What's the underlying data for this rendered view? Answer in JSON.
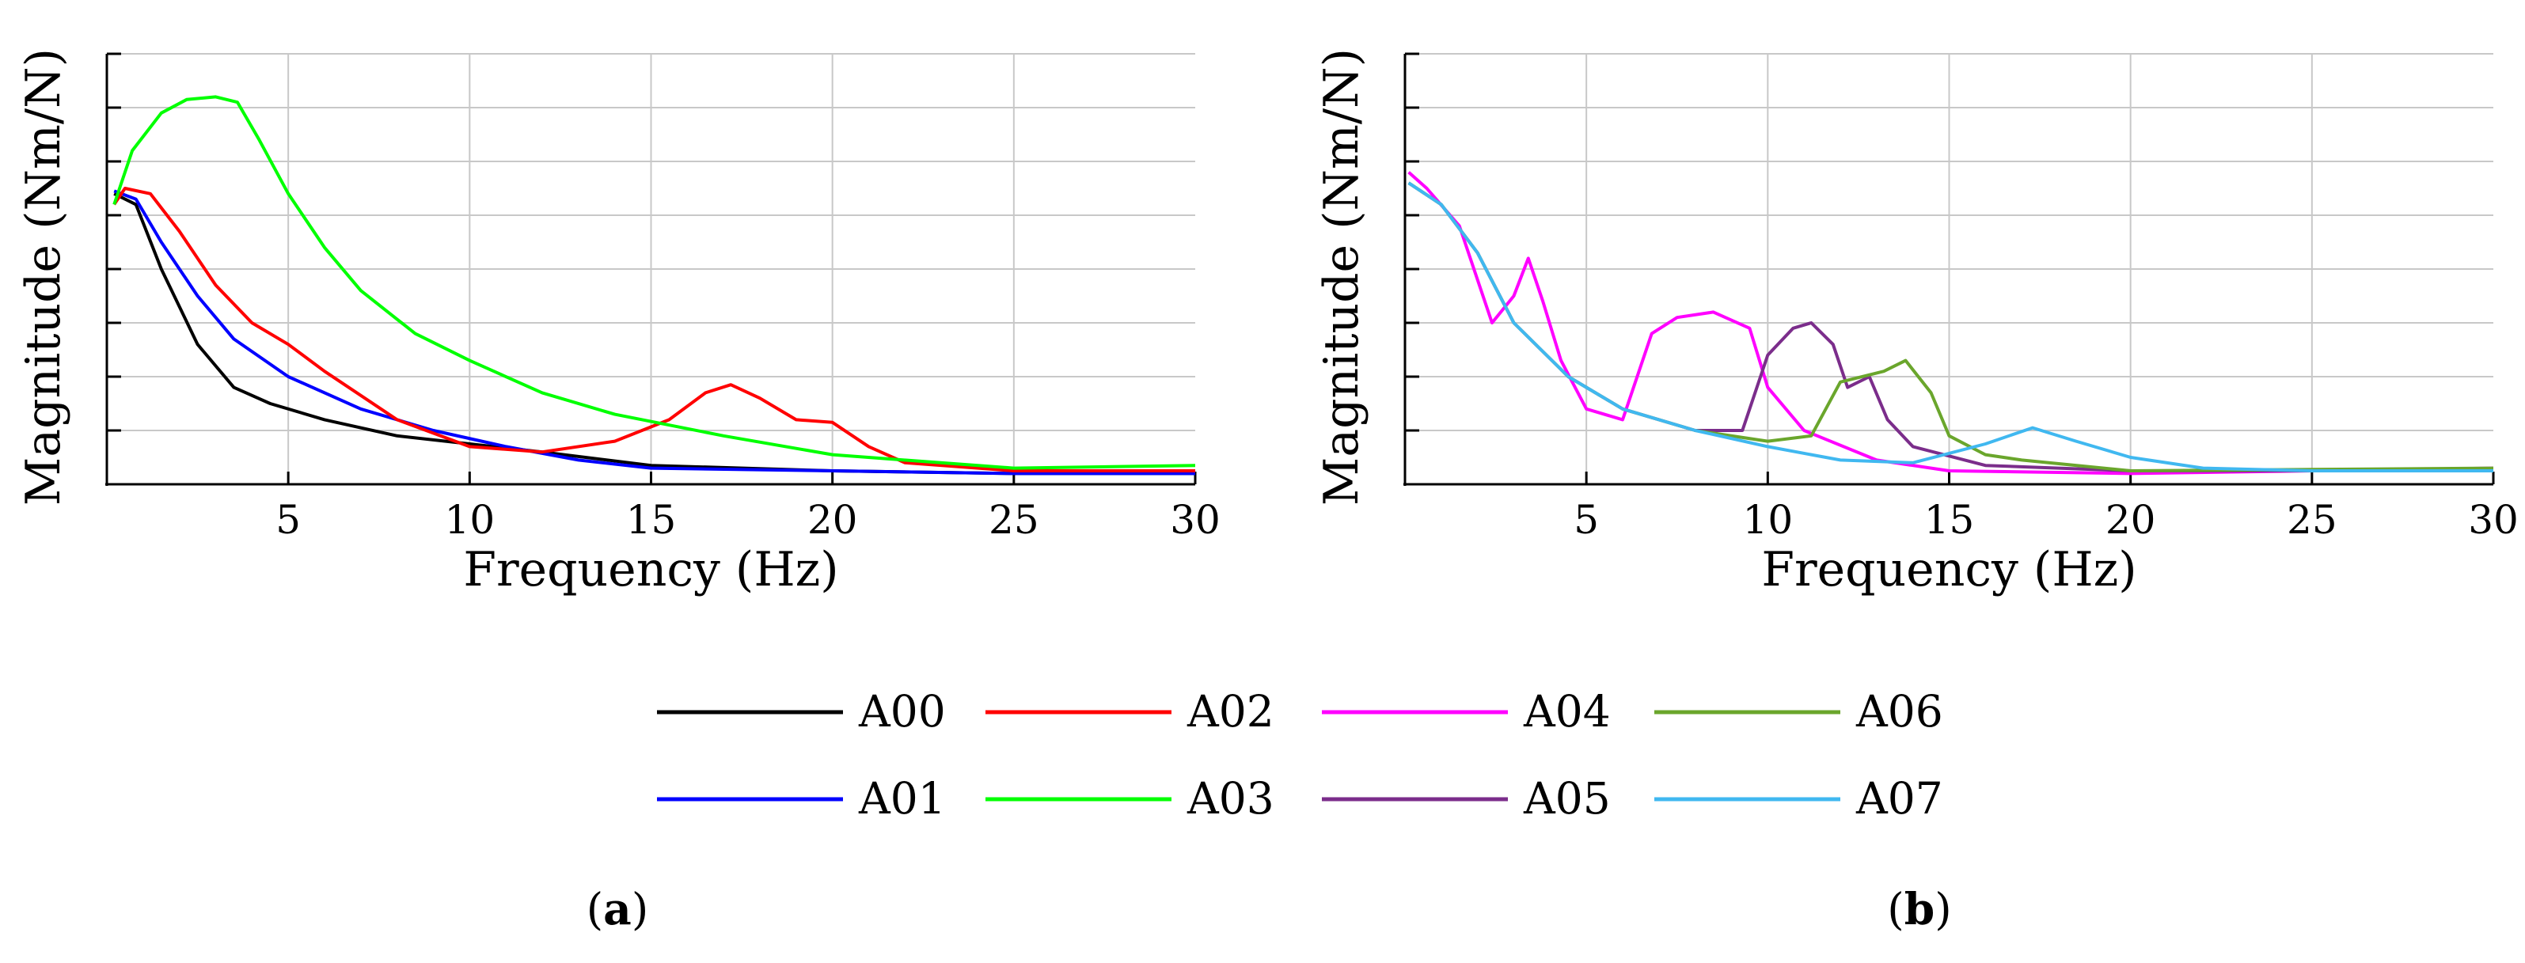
{
  "chart_data": [
    {
      "panel": "a",
      "type": "line",
      "xlabel": "Frequency (Hz)",
      "ylabel": "Magnitude (Nm/N)",
      "xlim": [
        0,
        30
      ],
      "ylim": [
        0,
        8
      ],
      "xticks": [
        "5",
        "10",
        "15",
        "20",
        "25",
        "30"
      ],
      "grid": true,
      "series": [
        {
          "name": "A00",
          "color": "#000000",
          "points": [
            [
              0.2,
              5.4
            ],
            [
              0.8,
              5.2
            ],
            [
              1.5,
              4.0
            ],
            [
              2.5,
              2.6
            ],
            [
              3.5,
              1.8
            ],
            [
              4.5,
              1.5
            ],
            [
              6,
              1.2
            ],
            [
              8,
              0.9
            ],
            [
              10,
              0.75
            ],
            [
              12,
              0.6
            ],
            [
              15,
              0.35
            ],
            [
              20,
              0.25
            ],
            [
              25,
              0.2
            ],
            [
              30,
              0.2
            ]
          ]
        },
        {
          "name": "A01",
          "color": "#0000ff",
          "points": [
            [
              0.2,
              5.45
            ],
            [
              0.8,
              5.3
            ],
            [
              1.5,
              4.5
            ],
            [
              2.5,
              3.5
            ],
            [
              3.5,
              2.7
            ],
            [
              5,
              2.0
            ],
            [
              7,
              1.4
            ],
            [
              9,
              1.0
            ],
            [
              11,
              0.7
            ],
            [
              13,
              0.45
            ],
            [
              15,
              0.3
            ],
            [
              20,
              0.25
            ],
            [
              25,
              0.2
            ],
            [
              30,
              0.2
            ]
          ]
        },
        {
          "name": "A02",
          "color": "#ff0000",
          "points": [
            [
              0.2,
              5.2
            ],
            [
              0.5,
              5.5
            ],
            [
              1.2,
              5.4
            ],
            [
              2,
              4.7
            ],
            [
              3,
              3.7
            ],
            [
              4,
              3.0
            ],
            [
              5,
              2.6
            ],
            [
              6,
              2.1
            ],
            [
              8,
              1.2
            ],
            [
              10,
              0.7
            ],
            [
              12,
              0.6
            ],
            [
              14,
              0.8
            ],
            [
              15.5,
              1.2
            ],
            [
              16.5,
              1.7
            ],
            [
              17.2,
              1.85
            ],
            [
              18,
              1.6
            ],
            [
              19,
              1.2
            ],
            [
              20,
              1.15
            ],
            [
              21,
              0.7
            ],
            [
              22,
              0.4
            ],
            [
              25,
              0.25
            ],
            [
              30,
              0.25
            ]
          ]
        },
        {
          "name": "A03",
          "color": "#00ff00",
          "points": [
            [
              0.2,
              5.2
            ],
            [
              0.7,
              6.2
            ],
            [
              1.5,
              6.9
            ],
            [
              2.2,
              7.15
            ],
            [
              3,
              7.2
            ],
            [
              3.6,
              7.1
            ],
            [
              4.2,
              6.4
            ],
            [
              5,
              5.4
            ],
            [
              6,
              4.4
            ],
            [
              7,
              3.6
            ],
            [
              8.5,
              2.8
            ],
            [
              10,
              2.3
            ],
            [
              12,
              1.7
            ],
            [
              14,
              1.3
            ],
            [
              17,
              0.9
            ],
            [
              20,
              0.55
            ],
            [
              25,
              0.3
            ],
            [
              30,
              0.35
            ]
          ]
        }
      ]
    },
    {
      "panel": "b",
      "type": "line",
      "xlabel": "Frequency (Hz)",
      "ylabel": "Magnitude (Nm/N)",
      "xlim": [
        0,
        30
      ],
      "ylim": [
        0,
        8
      ],
      "xticks": [
        "5",
        "10",
        "15",
        "20",
        "25",
        "30"
      ],
      "grid": true,
      "series": [
        {
          "name": "A04",
          "color": "#ff00ff",
          "points": [
            [
              0.1,
              5.8
            ],
            [
              0.6,
              5.5
            ],
            [
              1.5,
              4.8
            ],
            [
              2.4,
              3.0
            ],
            [
              3,
              3.5
            ],
            [
              3.4,
              4.2
            ],
            [
              3.8,
              3.4
            ],
            [
              4.3,
              2.3
            ],
            [
              5,
              1.4
            ],
            [
              6,
              1.2
            ],
            [
              6.8,
              2.8
            ],
            [
              7.5,
              3.1
            ],
            [
              8.5,
              3.2
            ],
            [
              9.5,
              2.9
            ],
            [
              10,
              1.8
            ],
            [
              11,
              1.0
            ],
            [
              13,
              0.45
            ],
            [
              15,
              0.25
            ],
            [
              20,
              0.2
            ],
            [
              30,
              0.3
            ]
          ]
        },
        {
          "name": "A05",
          "color": "#7b2d8b",
          "points": [
            [
              0.1,
              5.6
            ],
            [
              1,
              5.2
            ],
            [
              2,
              4.3
            ],
            [
              3,
              3.0
            ],
            [
              4.5,
              2.0
            ],
            [
              6,
              1.4
            ],
            [
              8,
              1.0
            ],
            [
              9.3,
              1.0
            ],
            [
              10,
              2.4
            ],
            [
              10.7,
              2.9
            ],
            [
              11.2,
              3.0
            ],
            [
              11.8,
              2.6
            ],
            [
              12.2,
              1.8
            ],
            [
              12.8,
              2.0
            ],
            [
              13.3,
              1.2
            ],
            [
              14,
              0.7
            ],
            [
              16,
              0.35
            ],
            [
              20,
              0.25
            ],
            [
              30,
              0.25
            ]
          ]
        },
        {
          "name": "A06",
          "color": "#6aa62c",
          "points": [
            [
              0.1,
              5.6
            ],
            [
              1,
              5.2
            ],
            [
              2,
              4.3
            ],
            [
              3,
              3.0
            ],
            [
              4.5,
              2.0
            ],
            [
              6,
              1.4
            ],
            [
              8,
              1.0
            ],
            [
              10,
              0.8
            ],
            [
              11.2,
              0.9
            ],
            [
              12,
              1.9
            ],
            [
              13.2,
              2.1
            ],
            [
              13.8,
              2.3
            ],
            [
              14.5,
              1.7
            ],
            [
              15,
              0.9
            ],
            [
              16,
              0.55
            ],
            [
              17,
              0.45
            ],
            [
              20,
              0.25
            ],
            [
              30,
              0.3
            ]
          ]
        },
        {
          "name": "A07",
          "color": "#40b8f0",
          "points": [
            [
              0.1,
              5.6
            ],
            [
              1,
              5.2
            ],
            [
              2,
              4.3
            ],
            [
              3,
              3.0
            ],
            [
              4.5,
              2.0
            ],
            [
              6,
              1.4
            ],
            [
              8,
              1.0
            ],
            [
              10,
              0.7
            ],
            [
              12,
              0.45
            ],
            [
              14,
              0.4
            ],
            [
              16,
              0.75
            ],
            [
              17.3,
              1.05
            ],
            [
              18.5,
              0.8
            ],
            [
              20,
              0.5
            ],
            [
              22,
              0.3
            ],
            [
              25,
              0.25
            ],
            [
              30,
              0.25
            ]
          ]
        }
      ]
    }
  ],
  "legend": [
    {
      "name": "A00",
      "color": "#000000"
    },
    {
      "name": "A02",
      "color": "#ff0000"
    },
    {
      "name": "A04",
      "color": "#ff00ff"
    },
    {
      "name": "A06",
      "color": "#6aa62c"
    },
    {
      "name": "A01",
      "color": "#0000ff"
    },
    {
      "name": "A03",
      "color": "#00ff00"
    },
    {
      "name": "A05",
      "color": "#7b2d8b"
    },
    {
      "name": "A07",
      "color": "#40b8f0"
    }
  ],
  "panel_labels": [
    {
      "open": "(",
      "letter": "a",
      "close": ")"
    },
    {
      "open": "(",
      "letter": "b",
      "close": ")"
    }
  ]
}
